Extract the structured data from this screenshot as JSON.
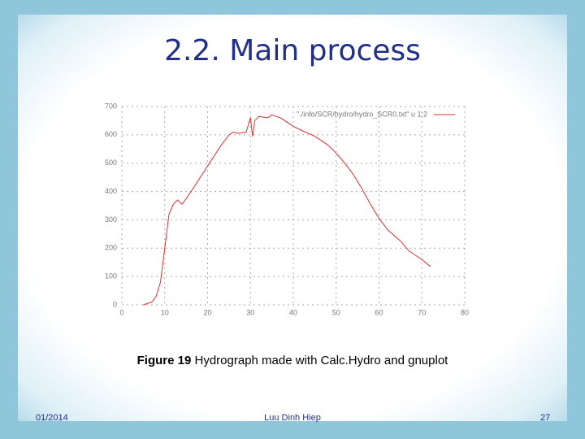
{
  "slide": {
    "title": "2.2. Main process",
    "caption_bold": "Figure 19",
    "caption": "Hydrograph made with Calc.Hydro and gnuplot",
    "date": "01/2014",
    "author": "Luu Dinh Hiep",
    "page": "27"
  },
  "chart_data": {
    "type": "line",
    "x": [
      5,
      7,
      8,
      9,
      10,
      11,
      12,
      13,
      14,
      15,
      17,
      20,
      23,
      25,
      26,
      27,
      29,
      30,
      30.5,
      31,
      32,
      34,
      35,
      37,
      38,
      40,
      42,
      45,
      48,
      50,
      52,
      54,
      56,
      58,
      60,
      62,
      65,
      67,
      70,
      72
    ],
    "series": [
      {
        "name": "\"./info/SCR/hydro/hydro_SCR0.txt\" u 1:2",
        "color": "#e03030",
        "values": [
          0,
          10,
          30,
          80,
          200,
          320,
          355,
          370,
          355,
          375,
          420,
          490,
          560,
          600,
          610,
          605,
          610,
          660,
          594,
          650,
          665,
          660,
          670,
          660,
          650,
          630,
          615,
          595,
          565,
          535,
          500,
          460,
          410,
          355,
          305,
          265,
          225,
          190,
          160,
          135
        ]
      }
    ],
    "xlim": [
      0,
      80
    ],
    "xticks": [
      0,
      10,
      20,
      30,
      40,
      50,
      60,
      70,
      80
    ],
    "ylim": [
      0,
      700
    ],
    "yticks": [
      0,
      100,
      200,
      300,
      400,
      500,
      600,
      700
    ],
    "grid": true,
    "legend": "upper-right"
  }
}
